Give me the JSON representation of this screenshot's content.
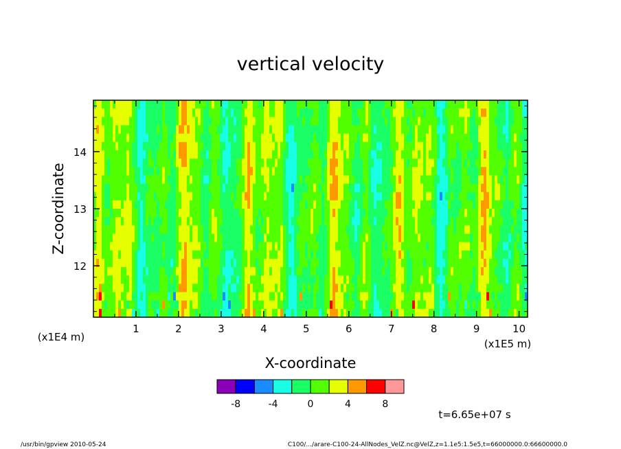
{
  "chart_data": {
    "type": "heatmap",
    "title": "vertical velocity",
    "xlabel": "X-coordinate",
    "ylabel": "Z-coordinate",
    "x_scale_label": "(x1E5 m)",
    "y_scale_label": "(x1E4 m)",
    "xlim": [
      0.0,
      10.2
    ],
    "ylim": [
      11.1,
      14.9
    ],
    "x_ticks": [
      1,
      2,
      3,
      4,
      5,
      6,
      7,
      8,
      9,
      10
    ],
    "y_ticks": [
      12,
      13,
      14
    ],
    "colorbar": {
      "levels": [
        -10,
        -8,
        -6,
        -4,
        -2,
        0,
        2,
        4,
        6,
        8,
        10
      ],
      "tick_labels": [
        "-8",
        "-4",
        "0",
        "4",
        "8"
      ],
      "tick_values": [
        -8,
        -4,
        0,
        4,
        8
      ],
      "colors": [
        "#8a00b8",
        "#0000ff",
        "#1a8cff",
        "#19ffe6",
        "#1aff66",
        "#52ff00",
        "#e6ff00",
        "#ff9900",
        "#ff0000",
        "#ff9999"
      ]
    },
    "field_description_values": {
      "dominant_band": [
        0,
        2
      ],
      "secondary_band": [
        -2,
        0
      ]
    },
    "annotation_time": "t=6.65e+07 s"
  },
  "footer": {
    "left": "/usr/bin/gpview   2010-05-24",
    "right": "C100/.../arare-C100-24-AllNodes_VelZ.nc@VelZ,z=1.1e5:1.5e5,t=66000000.0:66600000.0"
  }
}
